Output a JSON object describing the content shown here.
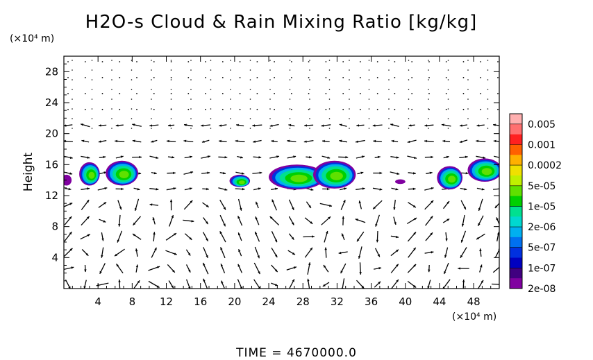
{
  "chart_data": {
    "type": "filled-contour-with-vectors",
    "title": "H2O-s Cloud & Rain Mixing Ratio [kg/kg]",
    "ylabel": "Height",
    "x_unit": "(×10⁴ m)",
    "y_unit": "(×10⁴ m)",
    "xlim": [
      0,
      51
    ],
    "ylim": [
      0,
      30
    ],
    "x_ticks": [
      "4",
      "8",
      "12",
      "16",
      "20",
      "24",
      "28",
      "32",
      "36",
      "40",
      "44",
      "48"
    ],
    "y_ticks": [
      "4",
      "8",
      "12",
      "16",
      "20",
      "24",
      "28"
    ],
    "x_tick_values": [
      4,
      8,
      12,
      16,
      20,
      24,
      28,
      32,
      36,
      40,
      44,
      48
    ],
    "y_tick_values": [
      4,
      8,
      12,
      16,
      20,
      24,
      28
    ],
    "colorbar": {
      "labels": [
        "0.005",
        "0.001",
        "0.0002",
        "5e-05",
        "1e-05",
        "2e-06",
        "5e-07",
        "1e-07",
        "2e-08"
      ],
      "colors": [
        "#ffb0b0",
        "#ff7070",
        "#ff2020",
        "#ff6000",
        "#ffb000",
        "#f0e000",
        "#c0f000",
        "#60e000",
        "#00d000",
        "#00e090",
        "#00d8d0",
        "#00b0f0",
        "#0070f0",
        "#0030e0",
        "#0000c0",
        "#400080",
        "#8000a0"
      ]
    },
    "cloud_cells": [
      {
        "x": 0.3,
        "y": 14.0,
        "rx": 0.6,
        "ry": 0.7
      },
      {
        "x": 3.0,
        "y": 14.8,
        "rx": 1.2,
        "ry": 1.5
      },
      {
        "x": 6.8,
        "y": 14.9,
        "rx": 1.9,
        "ry": 1.6
      },
      {
        "x": 20.6,
        "y": 13.9,
        "rx": 1.2,
        "ry": 0.8
      },
      {
        "x": 27.3,
        "y": 14.4,
        "rx": 3.3,
        "ry": 1.6
      },
      {
        "x": 31.7,
        "y": 14.7,
        "rx": 2.5,
        "ry": 1.8
      },
      {
        "x": 39.4,
        "y": 13.8,
        "rx": 0.6,
        "ry": 0.3
      },
      {
        "x": 45.2,
        "y": 14.3,
        "rx": 1.5,
        "ry": 1.5
      },
      {
        "x": 49.3,
        "y": 15.3,
        "rx": 2.0,
        "ry": 1.5
      }
    ],
    "time_label": "TIME  =  4670000.0"
  }
}
